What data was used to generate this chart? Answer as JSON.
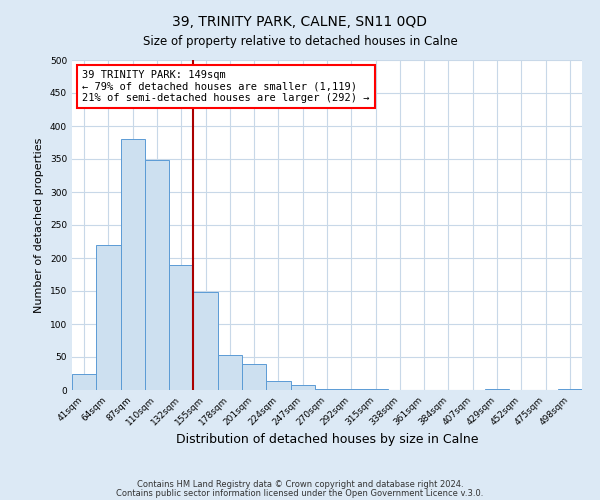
{
  "title": "39, TRINITY PARK, CALNE, SN11 0QD",
  "subtitle": "Size of property relative to detached houses in Calne",
  "xlabel": "Distribution of detached houses by size in Calne",
  "ylabel": "Number of detached properties",
  "bar_labels": [
    "41sqm",
    "64sqm",
    "87sqm",
    "110sqm",
    "132sqm",
    "155sqm",
    "178sqm",
    "201sqm",
    "224sqm",
    "247sqm",
    "270sqm",
    "292sqm",
    "315sqm",
    "338sqm",
    "361sqm",
    "384sqm",
    "407sqm",
    "429sqm",
    "452sqm",
    "475sqm",
    "498sqm"
  ],
  "bar_values": [
    25,
    220,
    380,
    348,
    190,
    148,
    53,
    40,
    13,
    7,
    2,
    2,
    1,
    0,
    0,
    0,
    0,
    1,
    0,
    0,
    1
  ],
  "bar_color": "#cde0f0",
  "bar_edge_color": "#5b9bd5",
  "vline_index": 5,
  "vline_color": "#aa0000",
  "ylim": [
    0,
    500
  ],
  "yticks": [
    0,
    50,
    100,
    150,
    200,
    250,
    300,
    350,
    400,
    450,
    500
  ],
  "annotation_line1": "39 TRINITY PARK: 149sqm",
  "annotation_line2": "← 79% of detached houses are smaller (1,119)",
  "annotation_line3": "21% of semi-detached houses are larger (292) →",
  "footer_line1": "Contains HM Land Registry data © Crown copyright and database right 2024.",
  "footer_line2": "Contains public sector information licensed under the Open Government Licence v.3.0.",
  "fig_bg_color": "#dce9f5",
  "plot_bg_color": "#ffffff",
  "grid_color": "#c8d8e8"
}
